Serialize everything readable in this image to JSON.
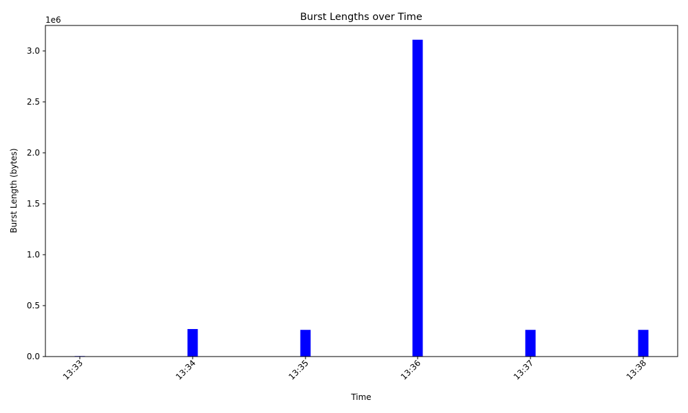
{
  "chart_data": {
    "type": "bar",
    "title": "Burst Lengths over Time",
    "xlabel": "Time",
    "ylabel": "Burst Length (bytes)",
    "y_offset_label": "1e6",
    "y_scale": 1000000,
    "ylim": [
      0,
      3250000
    ],
    "yticks": [
      0,
      500000,
      1000000,
      1500000,
      2000000,
      2500000,
      3000000
    ],
    "ytick_labels": [
      "0.0",
      "0.5",
      "1.0",
      "1.5",
      "2.0",
      "2.5",
      "3.0"
    ],
    "xticks": [
      "13:33",
      "13:34",
      "13:35",
      "13:36",
      "13:37",
      "13:38"
    ],
    "x_tick_rotation_deg": 45,
    "bar_color": "#0000ff",
    "grid": false,
    "series": [
      {
        "x": [
          "13:33",
          "13:34",
          "13:35",
          "13:36",
          "13:37",
          "13:38"
        ],
        "values": [
          5000,
          270000,
          262000,
          3110000,
          262000,
          262000
        ]
      }
    ]
  }
}
